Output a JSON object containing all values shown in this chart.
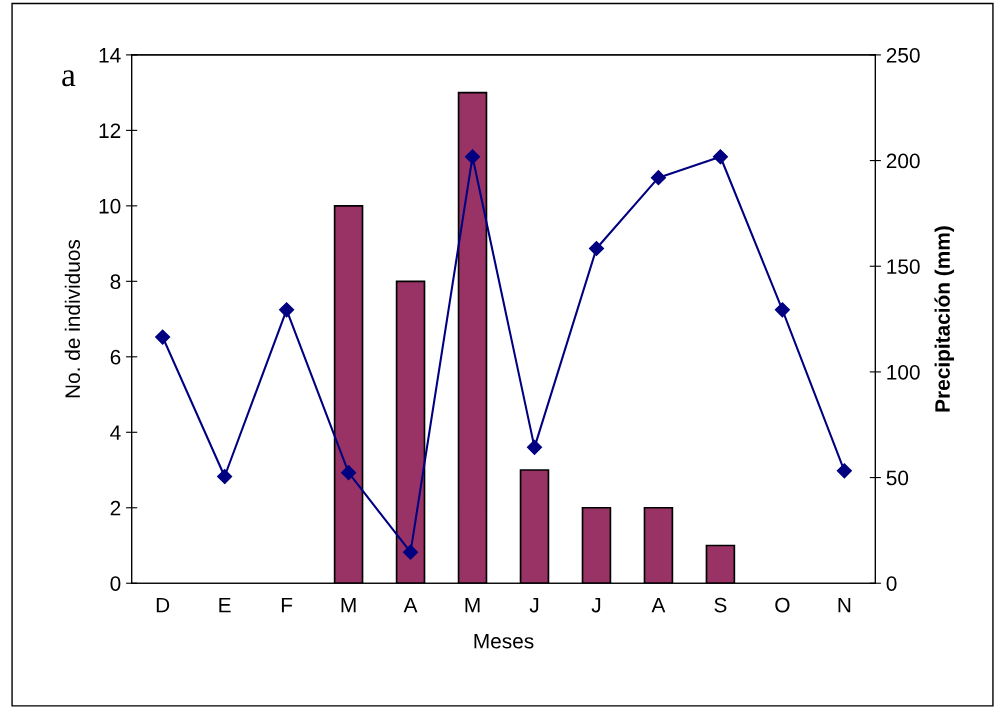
{
  "chart_data": {
    "type": "bar",
    "title": "a",
    "xlabel": "Meses",
    "ylabel": "No. de individuos",
    "y2label": "Precipitación (mm)",
    "categories": [
      "D",
      "E",
      "F",
      "M",
      "A",
      "M",
      "J",
      "J",
      "A",
      "S",
      "O",
      "N"
    ],
    "series": [
      {
        "color": "#993366",
        "values": [
          0,
          0,
          0,
          10,
          8,
          13,
          3,
          2,
          2,
          1,
          0,
          0
        ]
      },
      {
        "type": "line",
        "axis": "y2",
        "color": "#000080",
        "marker": "diamond",
        "values": [
          116.5,
          50.5,
          129.4,
          52.3,
          14.7,
          201.8,
          64.3,
          158.4,
          191.9,
          201.8,
          129.4,
          53.2
        ]
      }
    ],
    "ylim": [
      0,
      14
    ],
    "yticks": [
      0,
      2,
      4,
      6,
      8,
      10,
      12,
      14
    ],
    "y2lim": [
      0,
      250
    ],
    "y2ticks": [
      0,
      50,
      100,
      150,
      200,
      250
    ],
    "grid": false,
    "legend": false
  }
}
